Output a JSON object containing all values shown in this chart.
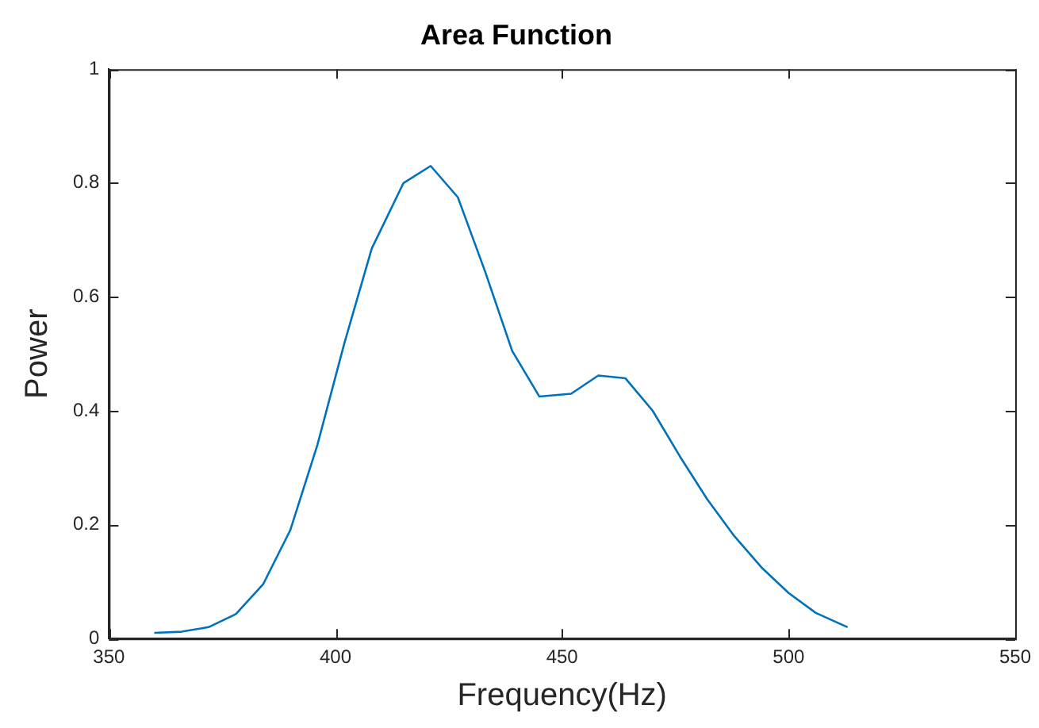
{
  "chart_data": {
    "type": "line",
    "title": "Area Function",
    "xlabel": "Frequency(Hz)",
    "ylabel": "Power",
    "x": [
      360,
      366,
      372,
      378,
      384,
      390,
      396,
      402,
      408,
      415,
      421,
      427,
      433,
      439,
      445,
      452,
      458,
      464,
      470,
      476,
      482,
      488,
      494,
      500,
      506,
      513
    ],
    "series": [
      {
        "color": "#0072bd",
        "values": [
          0.01,
          0.012,
          0.02,
          0.043,
          0.095,
          0.19,
          0.34,
          0.52,
          0.685,
          0.8,
          0.83,
          0.775,
          0.645,
          0.505,
          0.425,
          0.43,
          0.462,
          0.457,
          0.4,
          0.32,
          0.245,
          0.18,
          0.125,
          0.08,
          0.045,
          0.02
        ]
      }
    ],
    "xlim": [
      350,
      550
    ],
    "xticks": [
      350,
      400,
      450,
      500,
      550
    ],
    "ylim": [
      0,
      1
    ],
    "yticks": [
      0,
      0.2,
      0.4,
      0.6,
      0.8,
      1
    ],
    "grid": false,
    "legend": false,
    "marker": "none",
    "line_style": "solid"
  }
}
